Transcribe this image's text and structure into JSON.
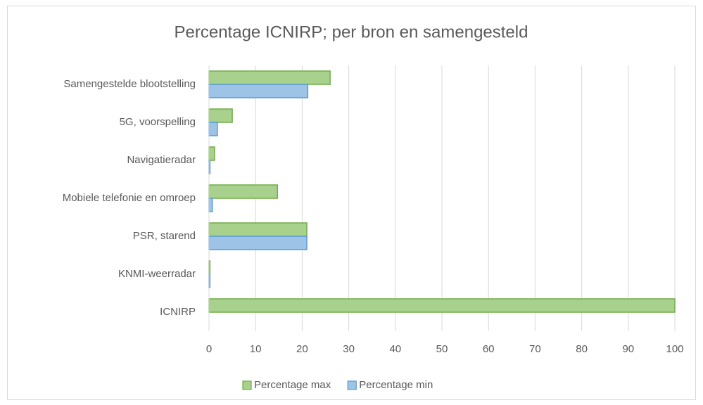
{
  "chart_data": {
    "type": "bar",
    "orientation": "horizontal",
    "title": "Percentage ICNIRP; per bron en samengesteld",
    "categories": [
      "Samengestelde blootstelling",
      "5G, voorspelling",
      "Navigatieradar",
      "Mobiele telefonie en omroep",
      "PSR, starend",
      "KNMI-weerradar",
      "ICNIRP"
    ],
    "series": [
      {
        "name": "Percentage max",
        "color": "#a9d18e",
        "edge": "#70ad47",
        "values": [
          26,
          5,
          1.2,
          14.7,
          21,
          0.2,
          100
        ]
      },
      {
        "name": "Percentage min",
        "color": "#9dc3e6",
        "edge": "#5b9bd5",
        "values": [
          21.2,
          1.8,
          0.2,
          0.7,
          21,
          0.2,
          null
        ]
      }
    ],
    "xlim": [
      0,
      100
    ],
    "xticks": [
      0,
      10,
      20,
      30,
      40,
      50,
      60,
      70,
      80,
      90,
      100
    ],
    "grid": true,
    "legend": "bottom"
  }
}
